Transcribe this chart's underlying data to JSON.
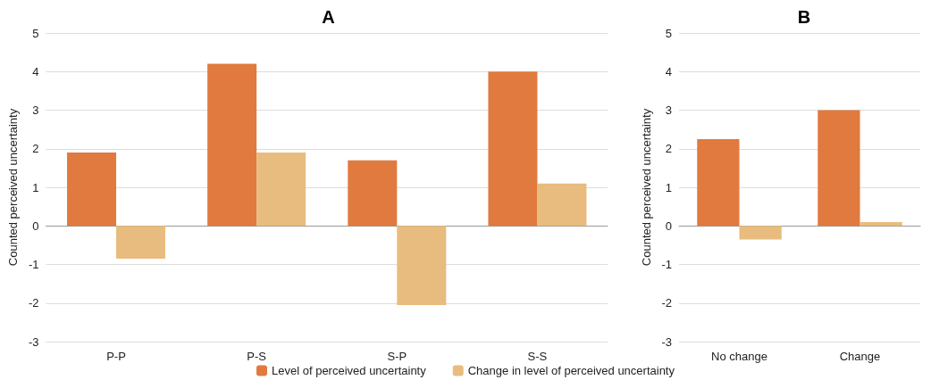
{
  "chart_data": [
    {
      "type": "bar",
      "title": "A",
      "ylabel": "Counted perceived uncertainty",
      "categories": [
        "P-P",
        "P-S",
        "S-P",
        "S-S"
      ],
      "series": [
        {
          "name": "Level of perceived uncertainty",
          "color": "#e07a3e",
          "values": [
            1.9,
            4.2,
            1.7,
            4.0
          ]
        },
        {
          "name": "Change in level of perceived uncertainty",
          "color": "#e8bc7e",
          "values": [
            -0.85,
            1.9,
            -2.05,
            1.1
          ]
        }
      ],
      "ylim": [
        -3,
        5
      ],
      "yticks": [
        -3,
        -2,
        -1,
        0,
        1,
        2,
        3,
        4,
        5
      ],
      "grid": "y",
      "legend": "bottom"
    },
    {
      "type": "bar",
      "title": "B",
      "ylabel": "Counted perceived uncertainty",
      "categories": [
        "No change",
        "Change"
      ],
      "series": [
        {
          "color": "#e07a3e",
          "values": [
            2.25,
            3.0
          ]
        },
        {
          "color": "#e8bc7e",
          "values": [
            -0.35,
            0.1
          ]
        }
      ],
      "ylim": [
        -3,
        5
      ],
      "yticks": [
        -3,
        -2,
        -1,
        0,
        1,
        2,
        3,
        4,
        5
      ],
      "grid": "y",
      "legend": false
    }
  ]
}
